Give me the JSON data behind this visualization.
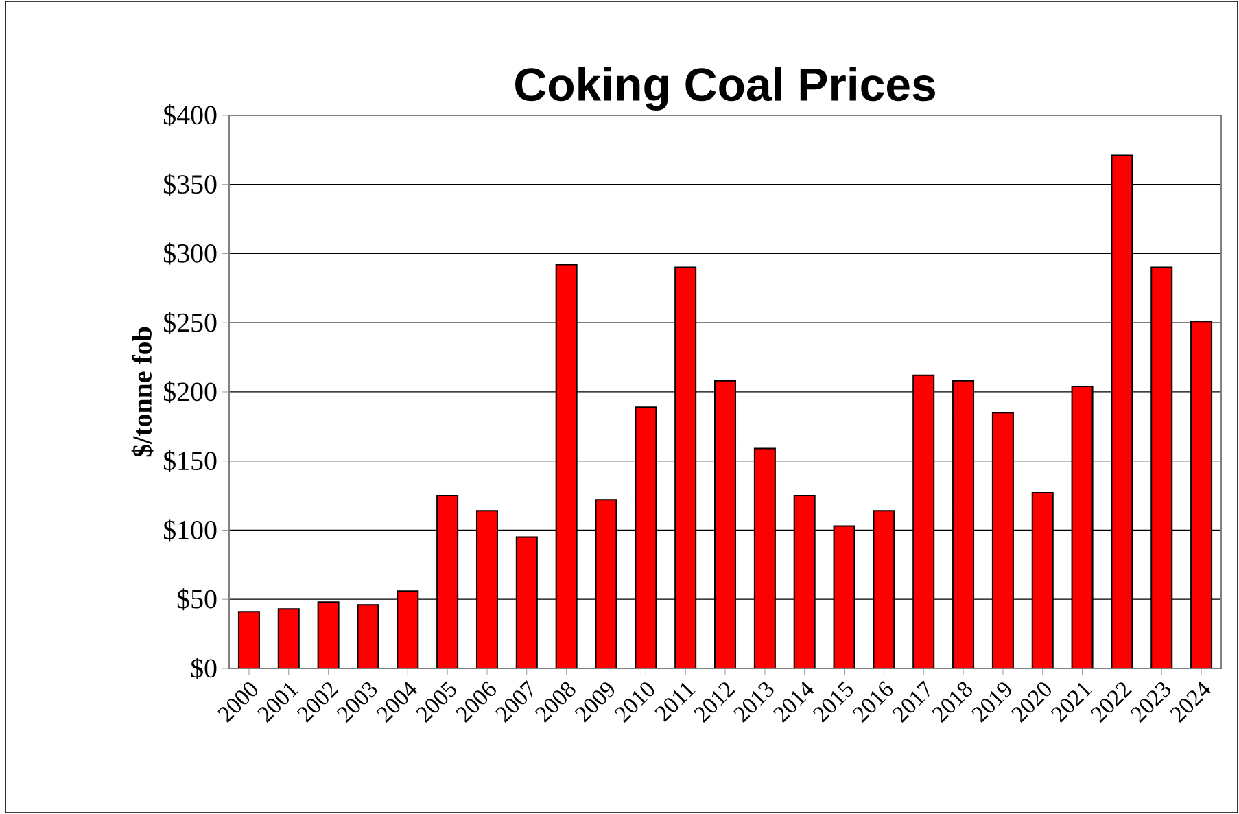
{
  "chart_data": {
    "type": "bar",
    "title": "Coking Coal Prices",
    "ylabel": "$/tonne fob",
    "categories": [
      "2000",
      "2001",
      "2002",
      "2003",
      "2004",
      "2005",
      "2006",
      "2007",
      "2008",
      "2009",
      "2010",
      "2011",
      "2012",
      "2013",
      "2014",
      "2015",
      "2016",
      "2017",
      "2018",
      "2019",
      "2020",
      "2021",
      "2022",
      "2023",
      "2024"
    ],
    "values": [
      41,
      43,
      48,
      46,
      56,
      125,
      114,
      95,
      292,
      122,
      189,
      290,
      208,
      159,
      125,
      103,
      114,
      212,
      208,
      185,
      127,
      204,
      371,
      290,
      251
    ],
    "color": "#ff0000",
    "ylim": [
      0,
      400
    ],
    "yticks": [
      {
        "value": 0,
        "label": "$0"
      },
      {
        "value": 50,
        "label": "$50"
      },
      {
        "value": 100,
        "label": "$100"
      },
      {
        "value": 150,
        "label": "$150"
      },
      {
        "value": 200,
        "label": "$200"
      },
      {
        "value": 250,
        "label": "$250"
      },
      {
        "value": 300,
        "label": "$300"
      },
      {
        "value": 350,
        "label": "$350"
      },
      {
        "value": 400,
        "label": "$400"
      }
    ],
    "grid": "y"
  }
}
